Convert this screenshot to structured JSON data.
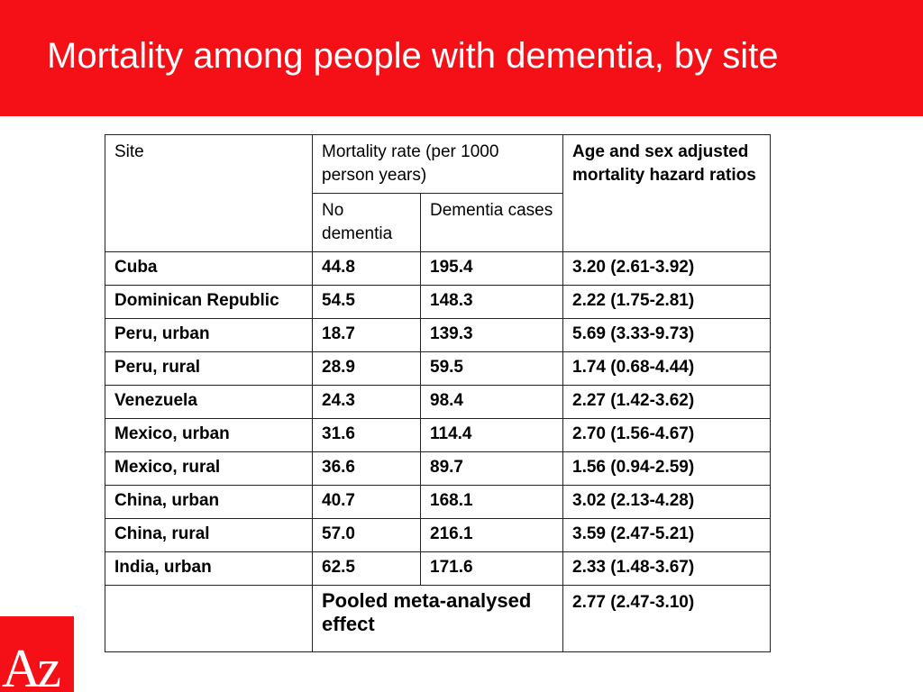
{
  "slide": {
    "title": "Mortality among people with dementia, by site",
    "accent_color": "#f50f17"
  },
  "table": {
    "headers": {
      "site": "Site",
      "mortality_rate": "Mortality rate (per 1000 person years)",
      "hazard_ratios": "Age and sex adjusted mortality hazard ratios",
      "no_dementia": "No dementia",
      "dementia_cases": "Dementia cases"
    },
    "rows": [
      {
        "site": "Cuba",
        "no_dementia": "44.8",
        "dementia_cases": "195.4",
        "hazard_ratio": "3.20 (2.61-3.92)"
      },
      {
        "site": "Dominican Republic",
        "no_dementia": "54.5",
        "dementia_cases": "148.3",
        "hazard_ratio": "2.22 (1.75-2.81)"
      },
      {
        "site": "Peru, urban",
        "no_dementia": "18.7",
        "dementia_cases": "139.3",
        "hazard_ratio": "5.69 (3.33-9.73)"
      },
      {
        "site": "Peru, rural",
        "no_dementia": "28.9",
        "dementia_cases": "59.5",
        "hazard_ratio": "1.74 (0.68-4.44)"
      },
      {
        "site": "Venezuela",
        "no_dementia": "24.3",
        "dementia_cases": "98.4",
        "hazard_ratio": "2.27 (1.42-3.62)"
      },
      {
        "site": "Mexico, urban",
        "no_dementia": "31.6",
        "dementia_cases": "114.4",
        "hazard_ratio": "2.70 (1.56-4.67)"
      },
      {
        "site": "Mexico, rural",
        "no_dementia": "36.6",
        "dementia_cases": "89.7",
        "hazard_ratio": "1.56 (0.94-2.59)"
      },
      {
        "site": "China, urban",
        "no_dementia": "40.7",
        "dementia_cases": "168.1",
        "hazard_ratio": "3.02 (2.13-4.28)"
      },
      {
        "site": "China, rural",
        "no_dementia": "57.0",
        "dementia_cases": "216.1",
        "hazard_ratio": "3.59 (2.47-5.21)"
      },
      {
        "site": "India, urban",
        "no_dementia": "62.5",
        "dementia_cases": "171.6",
        "hazard_ratio": "2.33 (1.48-3.67)"
      }
    ],
    "pooled": {
      "label": "Pooled meta-analysed effect",
      "hazard_ratio": "2.77 (2.47-3.10)"
    }
  },
  "logo": {
    "text": "Az",
    "icon": "az-logo-icon"
  }
}
